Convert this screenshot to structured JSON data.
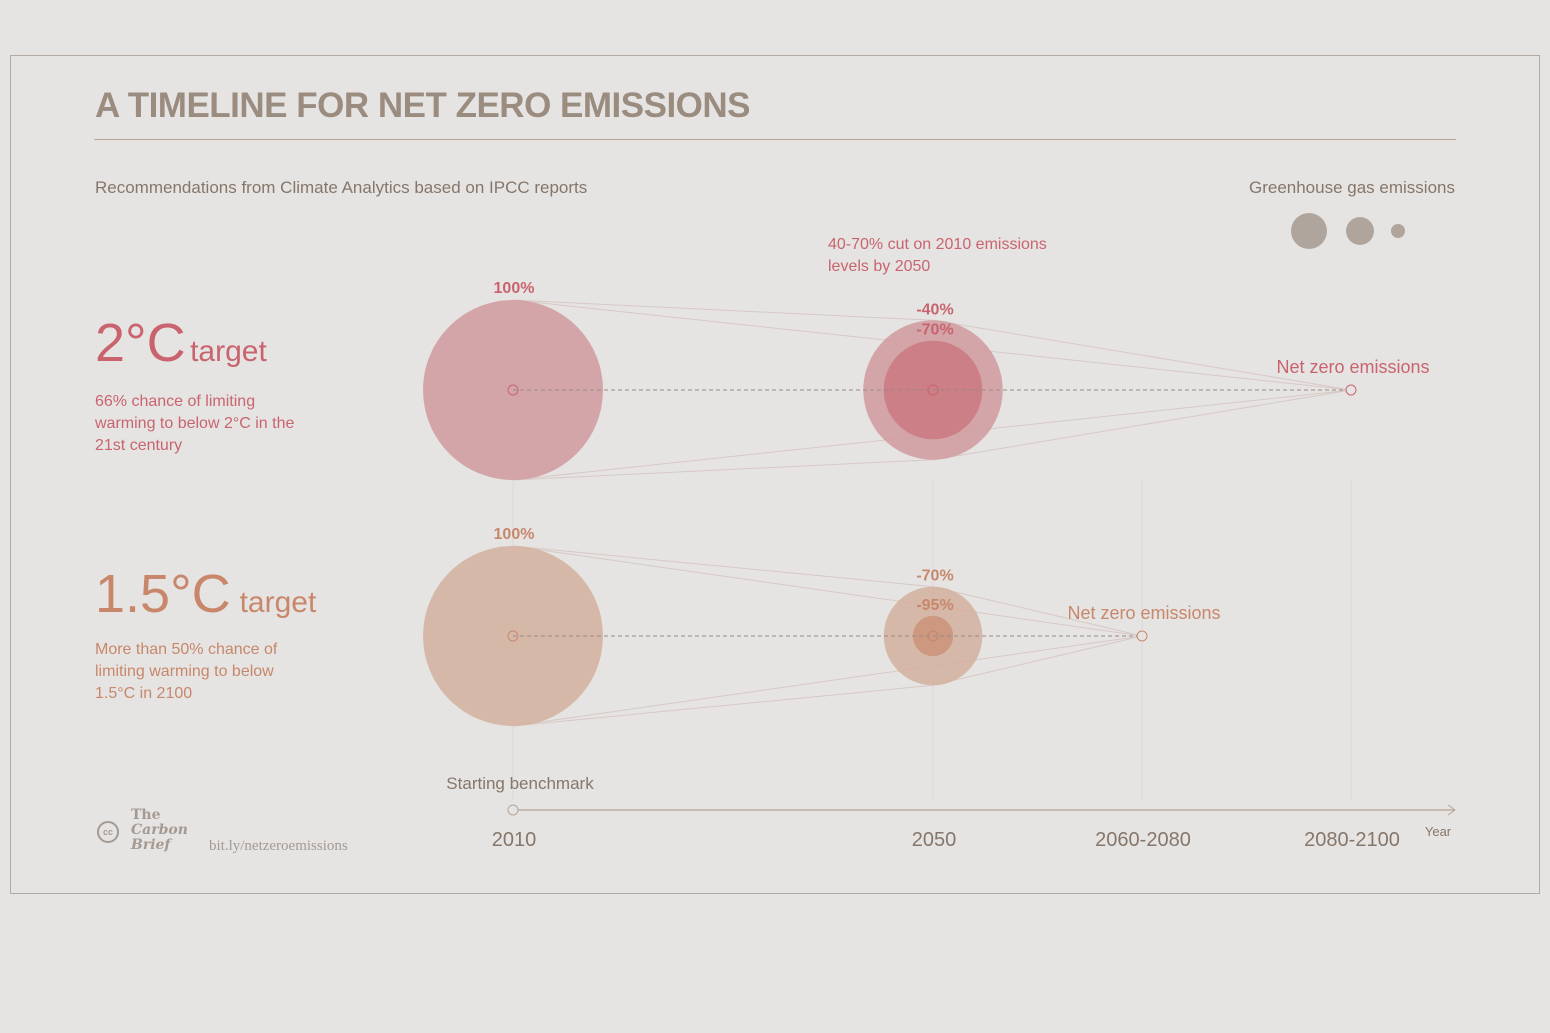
{
  "title": "A TIMELINE FOR NET ZERO EMISSIONS",
  "subtitle": "Recommendations from Climate Analytics based on IPCC reports",
  "legend": {
    "label": "Greenhouse gas emissions",
    "color": "#b0a59c"
  },
  "colors": {
    "red": "#c9646e",
    "orange": "#c8876a",
    "red_bubble": "#d09a9d",
    "orange_bubble": "#d4b09e",
    "axis": "#b8a595"
  },
  "targets": [
    {
      "big": "2°C",
      "small": "target",
      "desc": "66% chance of limiting warming to below 2°C in the 21st century"
    },
    {
      "big": "1.5°C",
      "small": "target",
      "desc": "More than 50% chance of limiting warming to below 1.5°C in 2100"
    }
  ],
  "annotation": "40-70% cut on 2010 emissions levels by 2050",
  "chart_data": {
    "type": "bubble-timeline",
    "categories": [
      "2010",
      "2050",
      "2060-2080",
      "2080-2100"
    ],
    "axis_label": "Year",
    "start_label": "Starting benchmark",
    "series": [
      {
        "name": "2°C target",
        "points": [
          {
            "category": "2010",
            "emissions_pct": 100,
            "label": "100%"
          },
          {
            "category": "2050",
            "emissions_pct": 60,
            "label": "-40%"
          },
          {
            "category": "2050",
            "emissions_pct": 30,
            "label": "-70%"
          },
          {
            "category": "2080-2100",
            "emissions_pct": 0,
            "label": "Net zero emissions"
          }
        ]
      },
      {
        "name": "1.5°C target",
        "points": [
          {
            "category": "2010",
            "emissions_pct": 100,
            "label": "100%"
          },
          {
            "category": "2050",
            "emissions_pct": 30,
            "label": "-70%"
          },
          {
            "category": "2050",
            "emissions_pct": 5,
            "label": "-95%"
          },
          {
            "category": "2060-2080",
            "emissions_pct": 0,
            "label": "Net zero emissions"
          }
        ]
      }
    ]
  },
  "footer": {
    "logo": "The Carbon Brief",
    "cc": "cc",
    "url": "bit.ly/netzeroemissions"
  }
}
